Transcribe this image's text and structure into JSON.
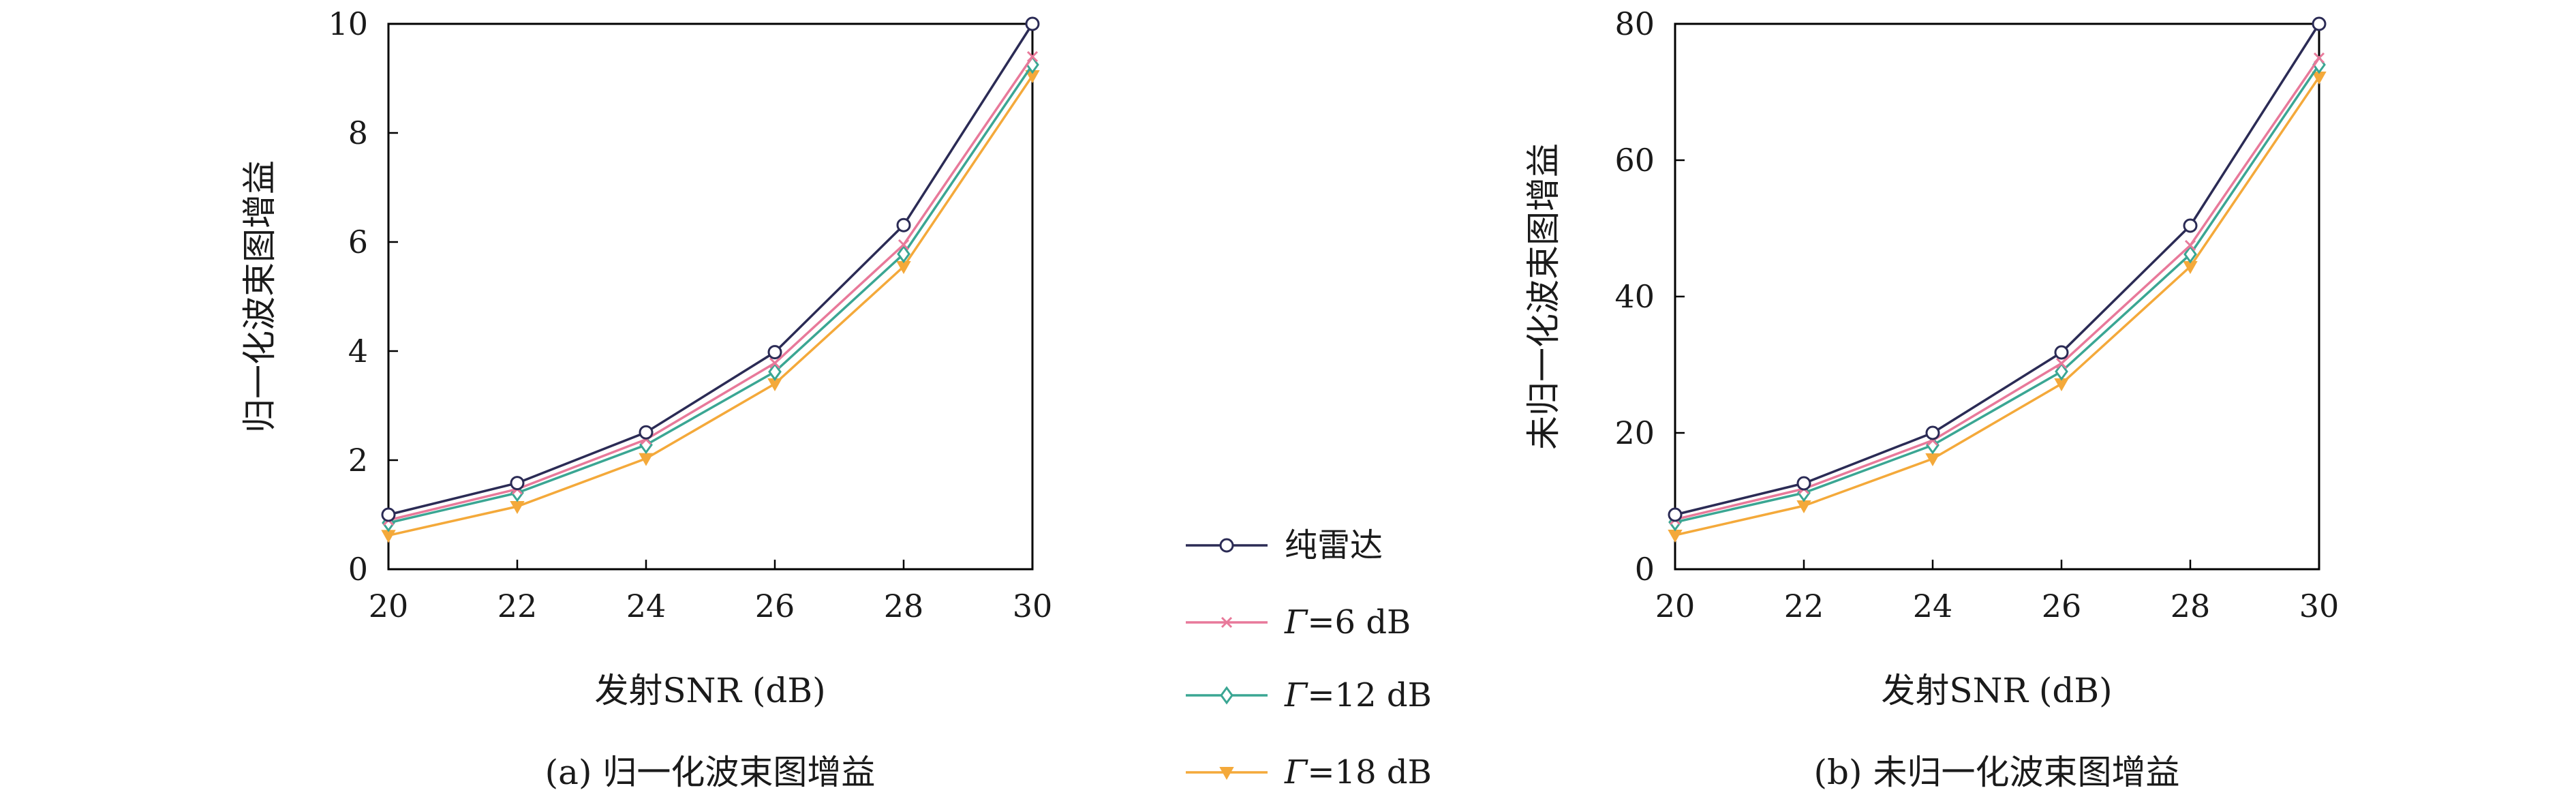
{
  "colors": {
    "series": [
      "#2b2b55",
      "#e8799a",
      "#3aa693",
      "#f4a93a"
    ],
    "marker_fill": "#ffffff",
    "axis": "#000000"
  },
  "legend": {
    "entries": [
      {
        "label": "纯雷达",
        "symbol": "",
        "suffix": "",
        "marker": "circle"
      },
      {
        "label": "",
        "symbol": "Γ",
        "suffix": "=6 dB",
        "marker": "x"
      },
      {
        "label": "",
        "symbol": "Γ",
        "suffix": "=12 dB",
        "marker": "diamond"
      },
      {
        "label": "",
        "symbol": "Γ",
        "suffix": "=18 dB",
        "marker": "triangle-down"
      }
    ]
  },
  "chart_data": [
    {
      "type": "line",
      "caption": "(a) 归一化波束图增益",
      "xlabel": "发射SNR (dB)",
      "ylabel": "归一化波束图增益",
      "xlim": [
        20,
        30
      ],
      "ylim": [
        0,
        10
      ],
      "xticks": [
        20,
        22,
        24,
        26,
        28,
        30
      ],
      "yticks": [
        0,
        2,
        4,
        6,
        8,
        10
      ],
      "grid": false,
      "x": [
        20,
        22,
        24,
        26,
        28,
        30
      ],
      "series": [
        {
          "name": "纯雷达",
          "marker": "circle",
          "values": [
            1.0,
            1.58,
            2.51,
            3.98,
            6.31,
            10.0
          ]
        },
        {
          "name": "Γ=6 dB",
          "marker": "x",
          "values": [
            0.9,
            1.47,
            2.38,
            3.78,
            5.95,
            9.4
          ]
        },
        {
          "name": "Γ=12 dB",
          "marker": "diamond",
          "values": [
            0.85,
            1.4,
            2.28,
            3.62,
            5.78,
            9.25
          ]
        },
        {
          "name": "Γ=18 dB",
          "marker": "triangle-down",
          "values": [
            0.62,
            1.15,
            2.03,
            3.4,
            5.55,
            9.05
          ]
        }
      ]
    },
    {
      "type": "line",
      "caption": "(b) 未归一化波束图增益",
      "xlabel": "发射SNR (dB)",
      "ylabel": "未归一化波束图增益",
      "xlim": [
        20,
        30
      ],
      "ylim": [
        0,
        80
      ],
      "xticks": [
        20,
        22,
        24,
        26,
        28,
        30
      ],
      "yticks": [
        0,
        20,
        40,
        60,
        80
      ],
      "grid": false,
      "x": [
        20,
        22,
        24,
        26,
        28,
        30
      ],
      "series": [
        {
          "name": "纯雷达",
          "marker": "circle",
          "values": [
            8.0,
            12.6,
            20.0,
            31.8,
            50.4,
            80.0
          ]
        },
        {
          "name": "Γ=6 dB",
          "marker": "x",
          "values": [
            7.3,
            11.8,
            18.9,
            30.2,
            47.5,
            75.0
          ]
        },
        {
          "name": "Γ=12 dB",
          "marker": "diamond",
          "values": [
            6.9,
            11.2,
            18.2,
            29.0,
            46.2,
            74.0
          ]
        },
        {
          "name": "Γ=18 dB",
          "marker": "triangle-down",
          "values": [
            5.0,
            9.3,
            16.2,
            27.2,
            44.4,
            72.2
          ]
        }
      ]
    }
  ]
}
